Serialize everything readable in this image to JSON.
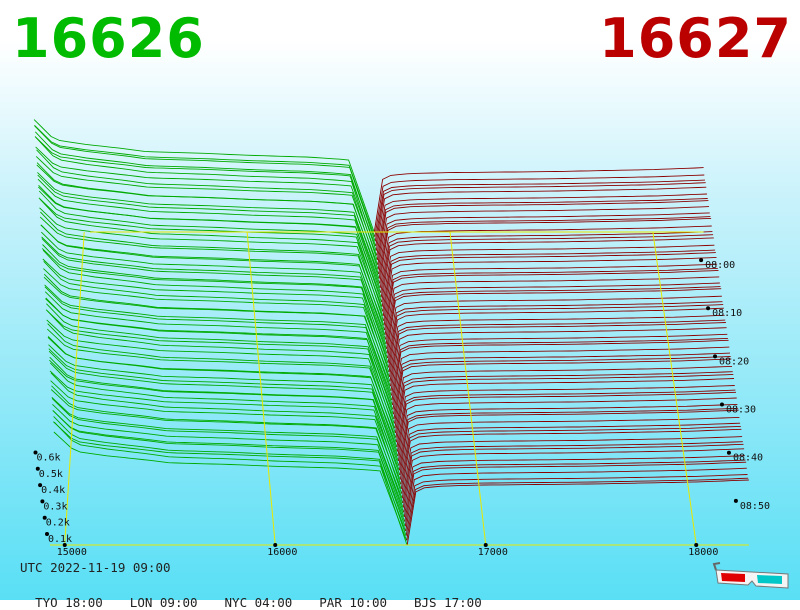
{
  "header": {
    "bid_price": "16626",
    "ask_price": "16627",
    "bid_color": "#00bb00",
    "ask_color": "#bb0000"
  },
  "chart_data": {
    "type": "area",
    "view": "3d-depth-chart",
    "x_ticks": [
      "15000",
      "16000",
      "17000",
      "18000"
    ],
    "x_tick_values": [
      15000,
      16000,
      17000,
      18000
    ],
    "xlim": [
      14930,
      18250
    ],
    "mid_price": 16626.5,
    "y_ticks": [
      "0.1k",
      "0.2k",
      "0.3k",
      "0.4k",
      "0.5k",
      "0.6k"
    ],
    "y_tick_values": [
      100,
      200,
      300,
      400,
      500,
      600
    ],
    "time_ticks": [
      "08:00",
      "08:10",
      "08:20",
      "08:30",
      "08:40",
      "08:50"
    ],
    "time_range_minutes": [
      "07:55",
      "09:00"
    ],
    "series": [
      {
        "side": "bid",
        "color": "#00aa00",
        "price": [
          14950,
          15000,
          15050,
          15200,
          15400,
          15500,
          15800,
          16000,
          16300,
          16500,
          16600,
          16626
        ],
        "cum_depth": [
          615,
          560,
          505,
          480,
          455,
          440,
          430,
          420,
          410,
          395,
          80,
          0
        ]
      },
      {
        "side": "ask",
        "color": "#8b0000",
        "price": [
          16627,
          16650,
          16700,
          16800,
          17000,
          17500,
          18000,
          18250
        ],
        "cum_depth": [
          0,
          255,
          285,
          295,
          300,
          305,
          315,
          325
        ]
      }
    ],
    "grid": "yellow"
  },
  "footer": {
    "utc": "UTC 2022-11-19 09:00",
    "zones": [
      "TYO 18:00",
      "LON 09:00",
      "NYC 04:00",
      "PAR 10:00",
      "BJS 17:00"
    ]
  }
}
